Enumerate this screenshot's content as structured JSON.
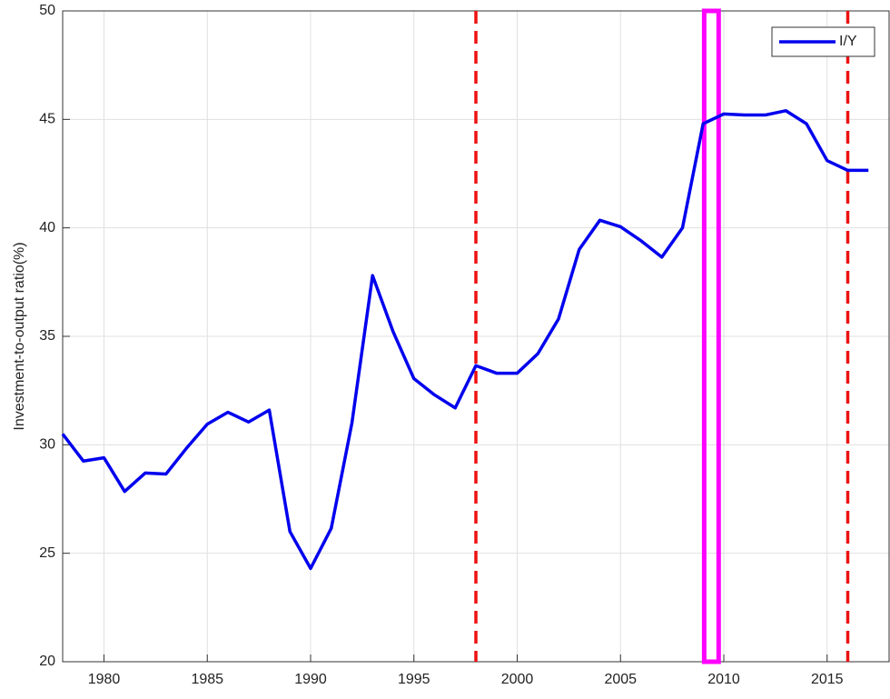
{
  "chart_data": {
    "type": "line",
    "y_label": "Investment-to-output ratio(%)",
    "x": [
      1978,
      1979,
      1980,
      1981,
      1982,
      1983,
      1984,
      1985,
      1986,
      1987,
      1988,
      1989,
      1990,
      1991,
      1992,
      1993,
      1994,
      1995,
      1996,
      1997,
      1998,
      1999,
      2000,
      2001,
      2002,
      2003,
      2004,
      2005,
      2006,
      2007,
      2008,
      2009,
      2010,
      2011,
      2012,
      2013,
      2014,
      2015,
      2016,
      2017
    ],
    "series": [
      {
        "name": "I/Y",
        "color": "#0000ee",
        "values": [
          30.5,
          29.25,
          29.4,
          27.85,
          28.7,
          28.65,
          29.85,
          30.95,
          31.5,
          31.05,
          31.6,
          26.0,
          24.3,
          26.15,
          31.0,
          37.8,
          35.2,
          33.05,
          32.3,
          31.7,
          33.65,
          33.3,
          33.3,
          34.2,
          35.8,
          39.0,
          40.35,
          40.05,
          39.4,
          38.65,
          40.0,
          44.8,
          45.25,
          45.2,
          45.2,
          45.4,
          44.8,
          43.1,
          42.65,
          42.65
        ]
      }
    ],
    "xlim": [
      1978,
      2018
    ],
    "xticks": [
      1980,
      1985,
      1990,
      1995,
      2000,
      2005,
      2010,
      2015
    ],
    "ylim": [
      20,
      50
    ],
    "yticks": [
      20,
      25,
      30,
      35,
      40,
      45,
      50
    ],
    "grid": true,
    "legend_position": "upper right",
    "vlines": [
      1998,
      2016
    ],
    "vline_color": "#ee1111",
    "highlight": [
      2009.05,
      2009.75
    ],
    "highlight_color": "#ff00ff"
  }
}
